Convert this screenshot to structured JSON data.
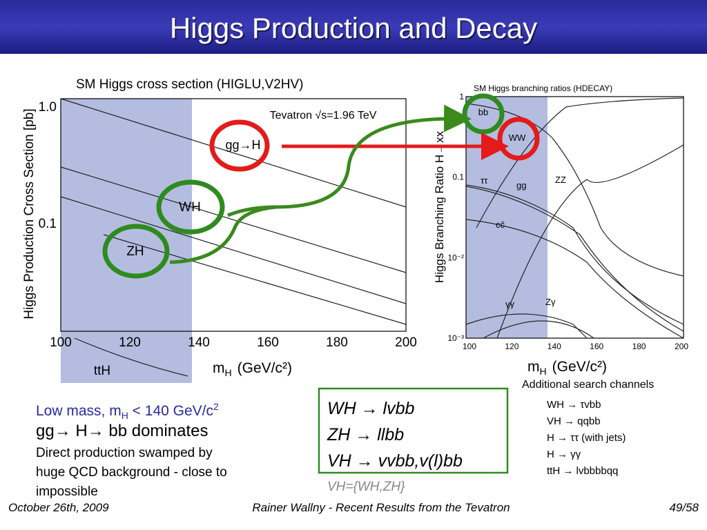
{
  "header": {
    "title": "Higgs Production and Decay"
  },
  "left_plot": {
    "title": "SM Higgs cross section (HIGLU,V2HV)",
    "y_label": "Higgs Production Cross Section [pb]",
    "x_label": {
      "m": "m",
      "sub": "H",
      "unit": "(GeV/c²)"
    },
    "x_ticks": [
      "100",
      "120",
      "140",
      "160",
      "180",
      "200"
    ],
    "y_ticks": [
      "1.0",
      "0.1"
    ],
    "annotation": "Tevatron √s=1.96 TeV",
    "curve_labels": [
      "gg→H",
      "WH",
      "ZH",
      "ttH"
    ]
  },
  "right_plot": {
    "title": "SM Higgs branching ratios (HDECAY)",
    "y_label": "Higgs Branching Ratio H→xx",
    "x_label": {
      "m": "m",
      "sub": "H",
      "unit": "(GeV/c²)"
    },
    "x_ticks": [
      "100",
      "120",
      "140",
      "160",
      "180",
      "200"
    ],
    "y_ticks": [
      "1",
      "0.1",
      "10⁻²",
      "10⁻³"
    ],
    "curve_labels": [
      "bb",
      "WW",
      "ττ",
      "gg",
      "ZZ",
      "cc̄",
      "γγ",
      "Zγ"
    ]
  },
  "low_mass": {
    "heading": [
      "Low mass, m",
      "H",
      " < 140 GeV/c",
      "2"
    ],
    "dominant": "gg→ H→ bb dominates",
    "lines": [
      "Direct production swamped by",
      "huge QCD background - close to",
      "impossible"
    ]
  },
  "channels_box": {
    "lines": [
      "WH → lvbb",
      "ZH → llbb",
      "VH → vvbb,v(l)bb"
    ],
    "note": "VH={WH,ZH}"
  },
  "additional": {
    "heading": "Additional search channels",
    "lines": [
      "WH → τvbb",
      "VH → qqbb",
      "H → ττ (with jets)",
      "H → γγ",
      "ttH → lvbbbbqq"
    ]
  },
  "footer": {
    "date": "October 26th, 2009",
    "center": "Rainer Wallny - Recent Results from the Tevatron",
    "page": "49/58"
  }
}
